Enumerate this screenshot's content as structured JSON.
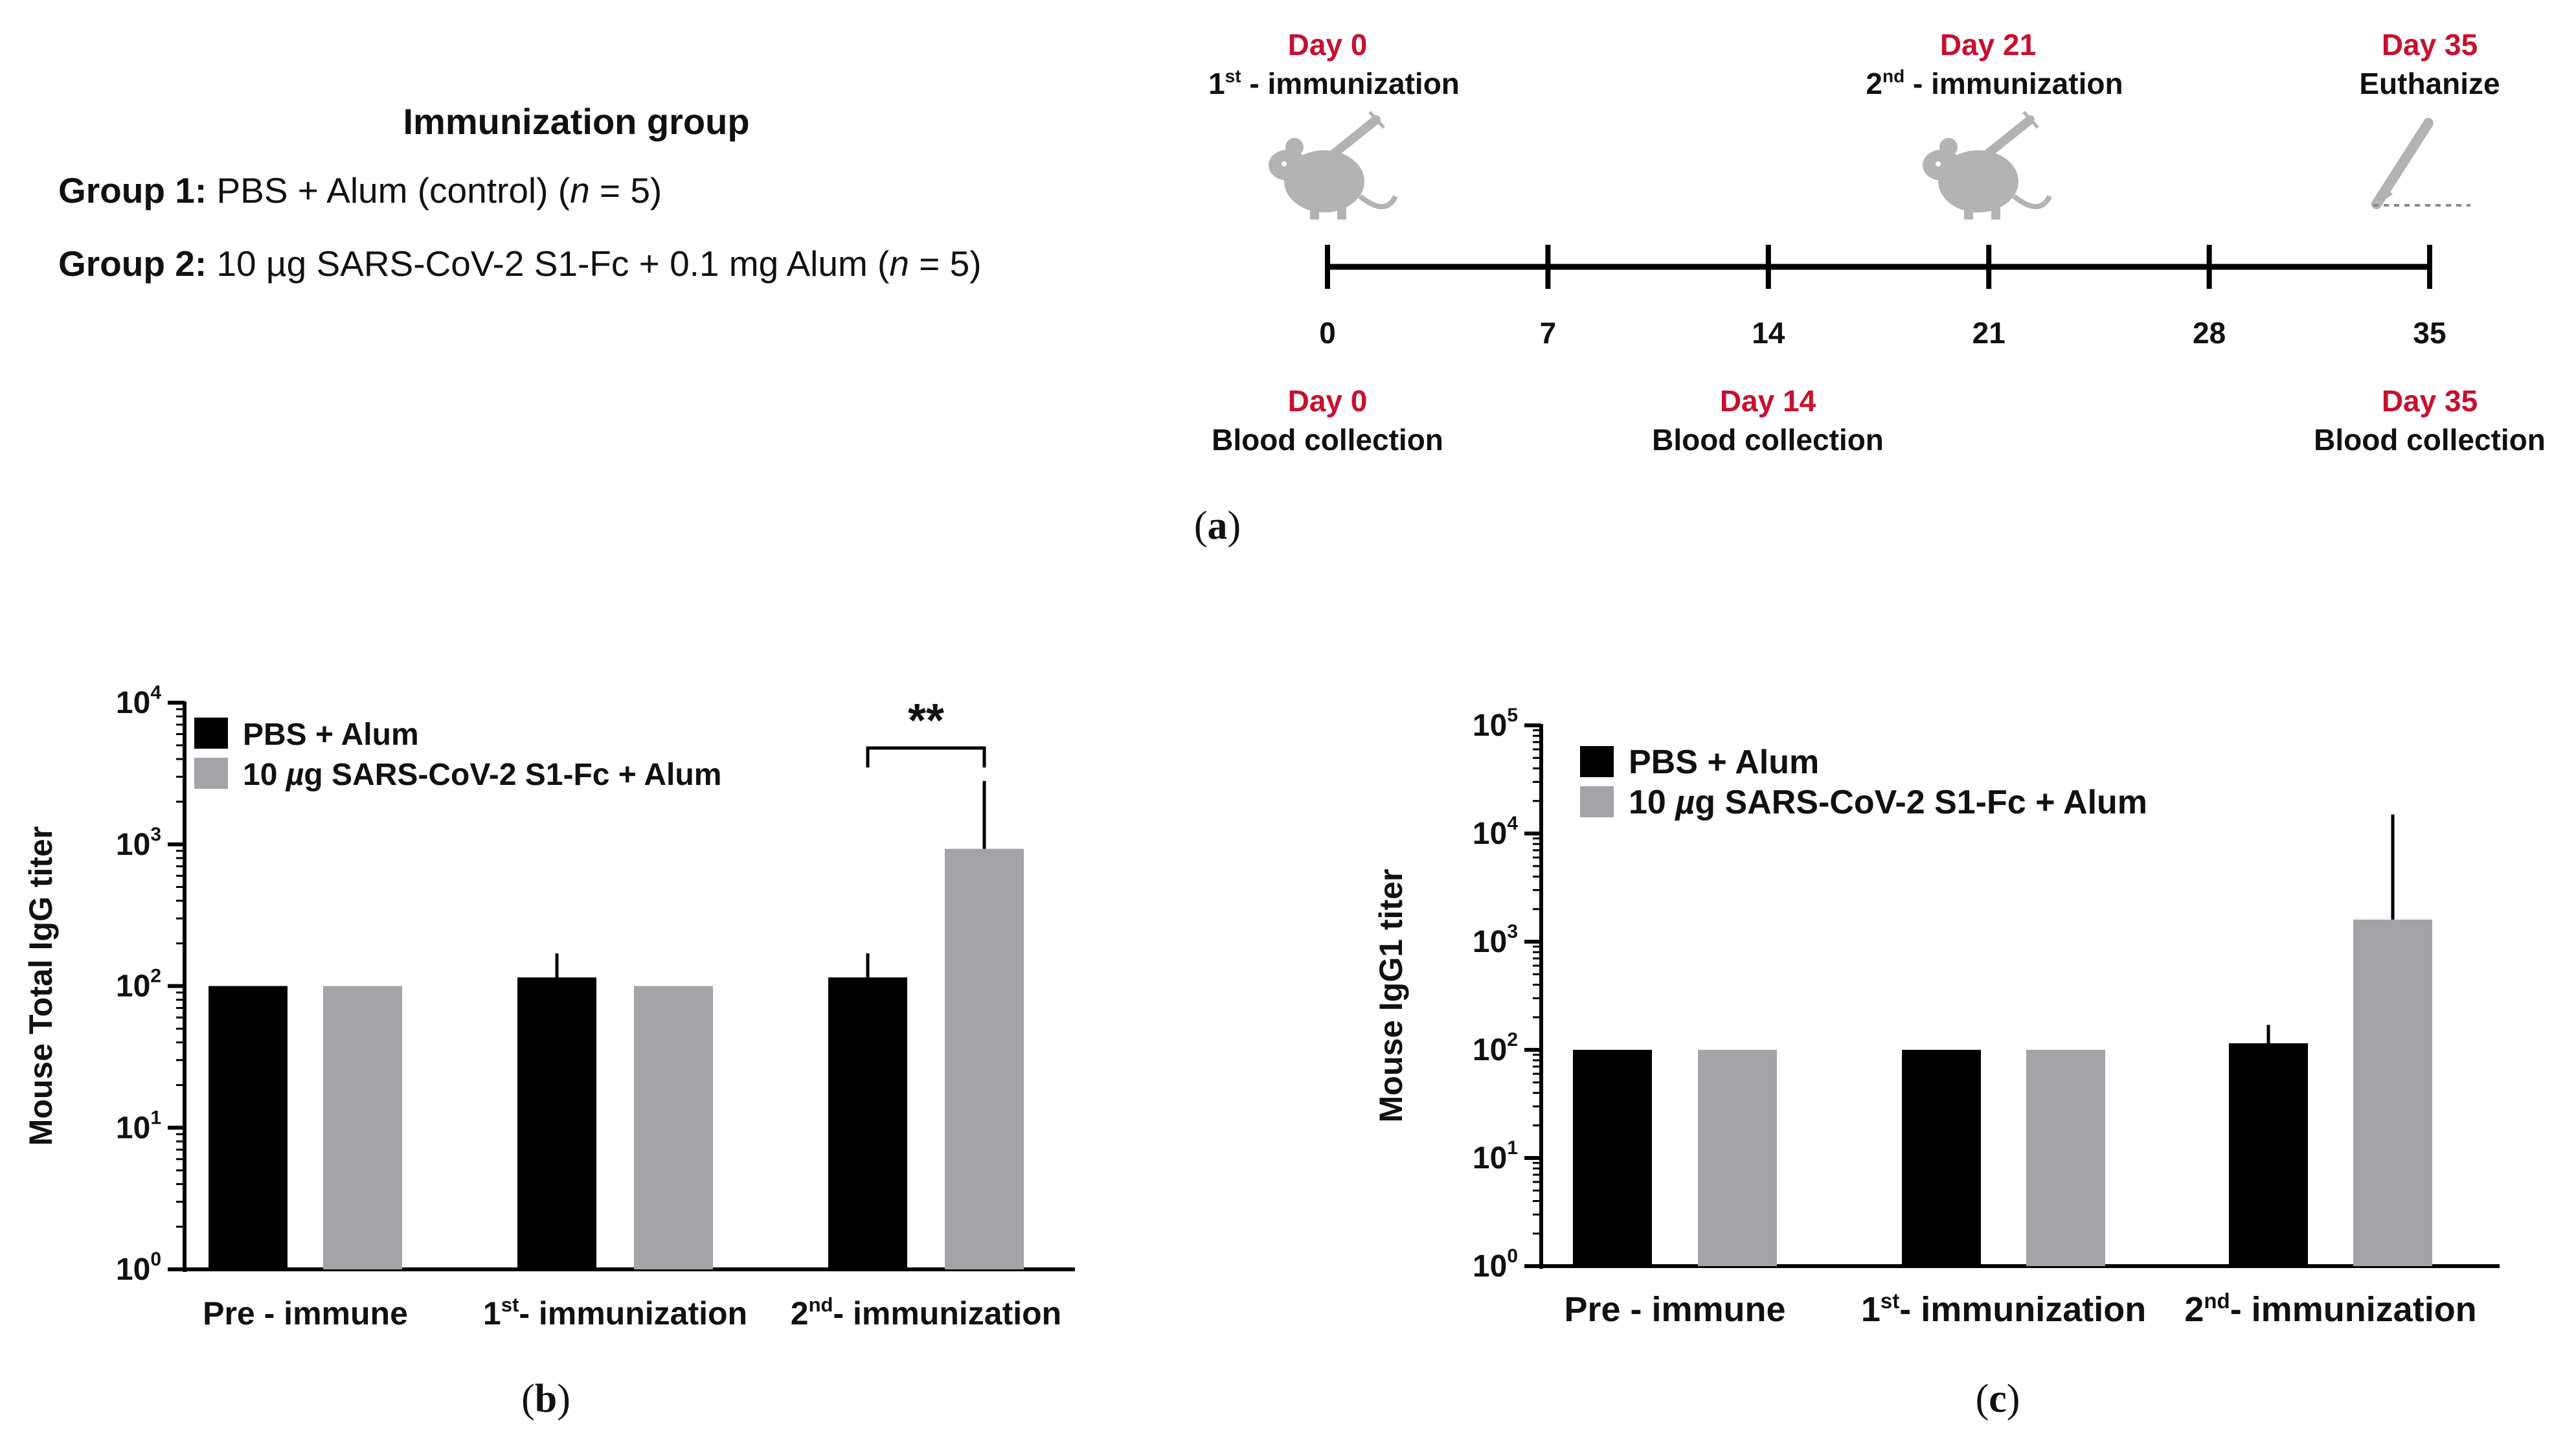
{
  "colors": {
    "pbs": "#000000",
    "s1fc": "#a3a3a8",
    "day_label": "#c8102e",
    "icon": "#b3b3b3"
  },
  "panel_a": {
    "caption": "a",
    "group_title": "Immunization group",
    "groups": [
      {
        "label": "Group 1:",
        "desc_pre": "PBS + Alum (control) (",
        "n_var": "n",
        "n_rest": " = 5)"
      },
      {
        "label": "Group 2:",
        "desc_pre": "10 µg SARS-CoV-2 S1-Fc + 0.1 mg Alum (",
        "n_var": "n",
        "n_rest": " = 5)"
      }
    ],
    "timeline": {
      "ticks": [
        "0",
        "7",
        "14",
        "21",
        "28",
        "35"
      ],
      "events_top": [
        {
          "day": "Day 0",
          "num": "1",
          "sup": "st",
          "rest": " - immunization",
          "icon": "mouse-syringe-icon"
        },
        {
          "day": "Day 21",
          "num": "2",
          "sup": "nd",
          "rest": " - immunization",
          "icon": "mouse-syringe-icon"
        },
        {
          "day": "Day 35",
          "text": "Euthanize",
          "icon": "scalpel-icon"
        }
      ],
      "events_bottom": [
        {
          "day": "Day 0",
          "text": "Blood collection"
        },
        {
          "day": "Day 14",
          "text": "Blood collection"
        },
        {
          "day": "Day 35",
          "text": "Blood collection"
        }
      ]
    }
  },
  "chart_data": [
    {
      "panel": "b",
      "caption": "b",
      "type": "bar",
      "yscale": "log",
      "ylabel": "Mouse Total IgG titer",
      "ylim": [
        1,
        10000
      ],
      "ytick_exponents": [
        "0",
        "1",
        "2",
        "3",
        "4"
      ],
      "categories": [
        {
          "label": "Pre - immune"
        },
        {
          "num": "1",
          "sup": "st",
          "rest": "- immunization"
        },
        {
          "num": "2",
          "sup": "nd",
          "rest": "- immunization"
        }
      ],
      "series": [
        {
          "name": "PBS + Alum",
          "values": [
            100,
            115,
            115
          ],
          "errors": [
            0,
            170,
            170
          ]
        },
        {
          "name": "10 µg SARS-CoV-2 S1-Fc + Alum",
          "values": [
            100,
            100,
            930
          ],
          "errors": [
            0,
            0,
            2800
          ]
        }
      ],
      "legend": [
        "PBS + Alum",
        "10 ",
        "µ",
        "g SARS-CoV-2 S1-Fc + Alum"
      ],
      "significance": {
        "category_index": 2,
        "label": "**"
      }
    },
    {
      "panel": "c",
      "caption": "c",
      "type": "bar",
      "yscale": "log",
      "ylabel": "Mouse IgG1 titer",
      "ylim": [
        1,
        100000
      ],
      "ytick_exponents": [
        "0",
        "1",
        "2",
        "3",
        "4",
        "5"
      ],
      "categories": [
        {
          "label": "Pre - immune"
        },
        {
          "num": "1",
          "sup": "st",
          "rest": "- immunization"
        },
        {
          "num": "2",
          "sup": "nd",
          "rest": "- immunization"
        }
      ],
      "series": [
        {
          "name": "PBS + Alum",
          "values": [
            100,
            100,
            115
          ],
          "errors": [
            0,
            0,
            170
          ]
        },
        {
          "name": "10 µg SARS-CoV-2 S1-Fc + Alum",
          "values": [
            100,
            100,
            1600
          ],
          "errors": [
            0,
            0,
            15000
          ]
        }
      ],
      "legend": [
        "PBS + Alum",
        "10 ",
        "µ",
        "g SARS-CoV-2 S1-Fc + Alum"
      ]
    }
  ]
}
